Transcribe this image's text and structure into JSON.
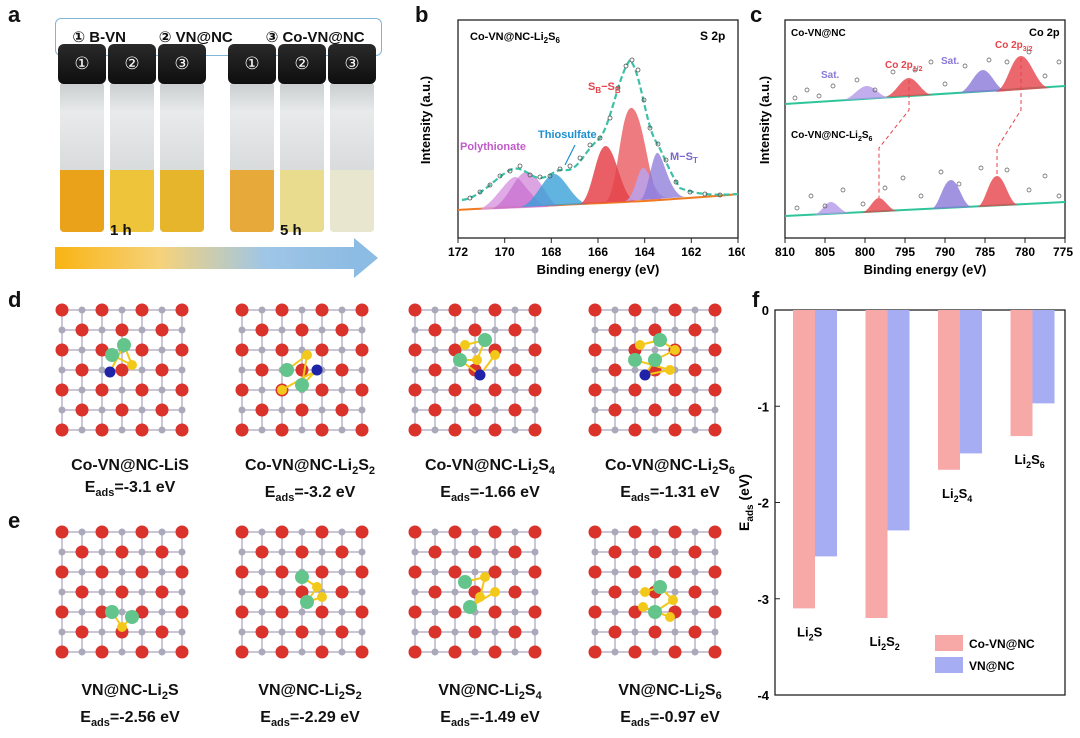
{
  "panel_labels": {
    "a": "a",
    "b": "b",
    "c": "c",
    "d": "d",
    "e": "e",
    "f": "f"
  },
  "panel_a": {
    "legend": [
      "① B-VN",
      "② VN@NC",
      "③ Co-VN@NC"
    ],
    "vial_numbers": [
      "①",
      "②",
      "③"
    ],
    "time_labels": [
      "1 h",
      "5 h"
    ],
    "liquid_colors_1h": [
      "#e9a21a",
      "#edc43a",
      "#e7b52c"
    ],
    "liquid_colors_5h": [
      "#e6a93a",
      "#e9dc8e",
      "#e9e6cf"
    ]
  },
  "panel_b": {
    "title_main": "Co-VN@NC-Li",
    "title_sub": "2",
    "title_tail": "S",
    "title_sub2": "6",
    "region": "S 2p",
    "ylabel": "Intensity (a.u.)",
    "xlabel": "Binding energy (eV)",
    "xticks": [
      "172",
      "170",
      "168",
      "166",
      "164",
      "162",
      "160"
    ],
    "annotations": {
      "polythionate": "Polythionate",
      "thiosulfate": "Thiosulfate",
      "sb": "S",
      "sb_sub1": "B",
      "sb_dash": "−S",
      "sb_sub2": "B",
      "mst": "M−S",
      "mst_sub": "T"
    }
  },
  "panel_c": {
    "top_label": "Co-VN@NC",
    "bottom_label_main": "Co-VN@NC-Li",
    "bottom_sub1": "2",
    "bottom_tail": "S",
    "bottom_sub2": "6",
    "region": "Co 2p",
    "sat1": "Sat.",
    "sat2": "Sat.",
    "co12": "Co 2p",
    "co12_sub": "1/2",
    "co32": "Co 2p",
    "co32_sub": "3/2",
    "ylabel": "Intensity (a.u.)",
    "xlabel": "Binding energy (eV)",
    "xticks": [
      "810",
      "805",
      "800",
      "795",
      "790",
      "785",
      "780",
      "775"
    ]
  },
  "panel_d": {
    "captions": [
      {
        "name": "Co-VN@NC-Li",
        "sub": "",
        "tail": "S",
        "sub2": "",
        "eads": "=-3.1 eV"
      },
      {
        "name": "Co-VN@NC-Li",
        "sub": "2",
        "tail": "S",
        "sub2": "2",
        "eads": "=-3.2 eV"
      },
      {
        "name": "Co-VN@NC-Li",
        "sub": "2",
        "tail": "S",
        "sub2": "4",
        "eads": "=-1.66 eV"
      },
      {
        "name": "Co-VN@NC-Li",
        "sub": "2",
        "tail": "S",
        "sub2": "6",
        "eads": "=-1.31 eV"
      }
    ]
  },
  "panel_e": {
    "captions": [
      {
        "name": "VN@NC-Li",
        "sub": "2",
        "tail": "S",
        "sub2": "",
        "eads": "=-2.56 eV"
      },
      {
        "name": "VN@NC-Li",
        "sub": "2",
        "tail": "S",
        "sub2": "2",
        "eads": "=-2.29 eV"
      },
      {
        "name": "VN@NC-Li",
        "sub": "2",
        "tail": "S",
        "sub2": "4",
        "eads": "=-1.49 eV"
      },
      {
        "name": "VN@NC-Li",
        "sub": "2",
        "tail": "S",
        "sub2": "6",
        "eads": "=-0.97 eV"
      }
    ],
    "eads_E": "E",
    "eads_sub": "ads"
  },
  "chart_data": {
    "type": "bar",
    "title": "",
    "categories": [
      "Li2S",
      "Li2S2",
      "Li2S4",
      "Li2S6"
    ],
    "category_labels": [
      {
        "main": "Li",
        "sub": "2",
        "tail": "S",
        "sub2": ""
      },
      {
        "main": "Li",
        "sub": "2",
        "tail": "S",
        "sub2": "2"
      },
      {
        "main": "Li",
        "sub": "2",
        "tail": "S",
        "sub2": "4"
      },
      {
        "main": "Li",
        "sub": "2",
        "tail": "S",
        "sub2": "6"
      }
    ],
    "series": [
      {
        "name": "Co-VN@NC",
        "values": [
          -3.1,
          -3.2,
          -1.66,
          -1.31
        ],
        "color": "#f7a9a8"
      },
      {
        "name": "VN@NC",
        "values": [
          -2.56,
          -2.29,
          -1.49,
          -0.97
        ],
        "color": "#a7adf3"
      }
    ],
    "ylabel": "E",
    "ylabel_sub": "ads",
    "ylabel_tail": " (eV)",
    "ylim": [
      -4,
      0
    ],
    "yticks": [
      "0",
      "-1",
      "-2",
      "-3",
      "-4"
    ],
    "legend_position": "bottom-right"
  },
  "colors": {
    "red_peak": "#e6434a",
    "pink_peak": "#c05bc8",
    "blue_peak": "#3aa0d8",
    "purple_peak": "#8a78d8",
    "cyan_fit": "#3cc1a6",
    "orange_base": "#f07a21",
    "atom_red": "#d9332b",
    "atom_grey": "#a9a9b9",
    "atom_green": "#63c48c",
    "atom_yellow": "#f2c91a",
    "atom_blue": "#1e23a8"
  }
}
